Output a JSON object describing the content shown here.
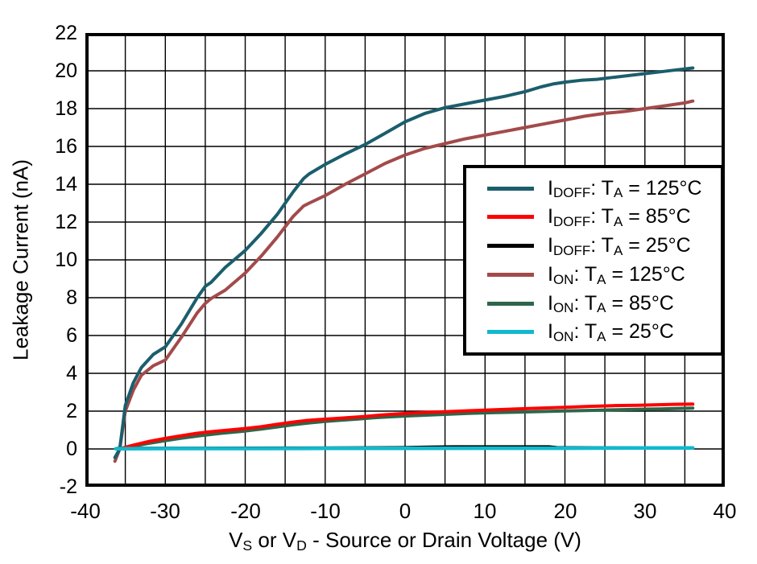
{
  "chart_data": {
    "type": "line",
    "title": "",
    "xlabel_text": "VS or VD - Source or Drain Voltage (V)",
    "xlabel_parts": [
      [
        "t",
        "V"
      ],
      [
        "s",
        "S"
      ],
      [
        "t",
        " or V"
      ],
      [
        "s",
        "D"
      ],
      [
        "t",
        " - Source or Drain Voltage (V)"
      ]
    ],
    "ylabel_text": "Leakage Current (nA)",
    "xlim": [
      -40,
      40
    ],
    "ylim": [
      -2,
      22
    ],
    "x_tick_labels": [
      "-40",
      "-30",
      "-20",
      "-10",
      "0",
      "10",
      "20",
      "30",
      "40"
    ],
    "x_tick_values": [
      -40,
      -30,
      -20,
      -10,
      0,
      10,
      20,
      30,
      40
    ],
    "x_grid_lines": [
      -35,
      -30,
      -25,
      -20,
      -15,
      -10,
      -5,
      0,
      5,
      10,
      15,
      20,
      25,
      30,
      35
    ],
    "y_tick_labels": [
      "-2",
      "0",
      "2",
      "4",
      "6",
      "8",
      "10",
      "12",
      "14",
      "16",
      "18",
      "20",
      "22"
    ],
    "y_tick_values": [
      -2,
      0,
      2,
      4,
      6,
      8,
      10,
      12,
      14,
      16,
      18,
      20,
      22
    ],
    "y_grid_lines": [
      0,
      2,
      4,
      6,
      8,
      10,
      12,
      14,
      16,
      18,
      20
    ],
    "grid": true,
    "frame_color": "#000000",
    "grid_color": "#000000",
    "legend_position": "inside-top-right",
    "series": [
      {
        "id": "idoff-125",
        "name": "IDOFF: TA = 125°C",
        "label_parts": [
          [
            "t",
            "I"
          ],
          [
            "s",
            "DOFF"
          ],
          [
            "t",
            ": T"
          ],
          [
            "s",
            "A"
          ],
          [
            "t",
            " = 125°C"
          ]
        ],
        "color": "#1B5E6C",
        "width": 4,
        "z": 5,
        "points": [
          [
            -36.3,
            -0.45
          ],
          [
            -35.7,
            0
          ],
          [
            -35,
            2.3
          ],
          [
            -34,
            3.5
          ],
          [
            -33,
            4.3
          ],
          [
            -31.5,
            5
          ],
          [
            -30,
            5.4
          ],
          [
            -28,
            6.6
          ],
          [
            -26,
            8
          ],
          [
            -25,
            8.6
          ],
          [
            -24.3,
            8.8
          ],
          [
            -22.5,
            9.6
          ],
          [
            -20,
            10.5
          ],
          [
            -18,
            11.4
          ],
          [
            -16,
            12.4
          ],
          [
            -14,
            13.6
          ],
          [
            -12.7,
            14.3
          ],
          [
            -12,
            14.55
          ],
          [
            -10,
            15.05
          ],
          [
            -7.5,
            15.6
          ],
          [
            -5,
            16.1
          ],
          [
            -2.5,
            16.7
          ],
          [
            0,
            17.3
          ],
          [
            2.5,
            17.75
          ],
          [
            5,
            18.05
          ],
          [
            7.5,
            18.25
          ],
          [
            10,
            18.45
          ],
          [
            12.5,
            18.65
          ],
          [
            15,
            18.9
          ],
          [
            17,
            19.15
          ],
          [
            18.5,
            19.3
          ],
          [
            20,
            19.4
          ],
          [
            22,
            19.5
          ],
          [
            24,
            19.55
          ],
          [
            26,
            19.65
          ],
          [
            28,
            19.75
          ],
          [
            30,
            19.85
          ],
          [
            32,
            19.95
          ],
          [
            34,
            20.05
          ],
          [
            36,
            20.15
          ]
        ]
      },
      {
        "id": "idoff-85",
        "name": "IDOFF: TA = 85°C",
        "label_parts": [
          [
            "t",
            "I"
          ],
          [
            "s",
            "DOFF"
          ],
          [
            "t",
            ": T"
          ],
          [
            "s",
            "A"
          ],
          [
            "t",
            " = 85°C"
          ]
        ],
        "color": "#FF0000",
        "width": 4,
        "z": 3,
        "points": [
          [
            -35.8,
            0
          ],
          [
            -34,
            0.2
          ],
          [
            -32,
            0.4
          ],
          [
            -30,
            0.56
          ],
          [
            -28,
            0.7
          ],
          [
            -26,
            0.83
          ],
          [
            -25,
            0.88
          ],
          [
            -23,
            0.96
          ],
          [
            -20,
            1.08
          ],
          [
            -18,
            1.18
          ],
          [
            -16,
            1.3
          ],
          [
            -14,
            1.42
          ],
          [
            -12.5,
            1.5
          ],
          [
            -11,
            1.55
          ],
          [
            -9,
            1.6
          ],
          [
            -7,
            1.66
          ],
          [
            -5,
            1.72
          ],
          [
            -3,
            1.79
          ],
          [
            -1,
            1.85
          ],
          [
            1,
            1.9
          ],
          [
            3,
            1.94
          ],
          [
            5,
            1.97
          ],
          [
            8,
            2.02
          ],
          [
            11,
            2.07
          ],
          [
            14,
            2.12
          ],
          [
            17,
            2.16
          ],
          [
            20,
            2.2
          ],
          [
            23,
            2.25
          ],
          [
            26,
            2.29
          ],
          [
            29,
            2.31
          ],
          [
            32,
            2.34
          ],
          [
            34,
            2.36
          ],
          [
            36,
            2.37
          ]
        ]
      },
      {
        "id": "idoff-25",
        "name": "IDOFF: TA = 25°C",
        "label_parts": [
          [
            "t",
            "I"
          ],
          [
            "s",
            "DOFF"
          ],
          [
            "t",
            ": T"
          ],
          [
            "s",
            "A"
          ],
          [
            "t",
            " = 25°C"
          ]
        ],
        "color": "#000000",
        "width": 3,
        "z": 1,
        "points": [
          [
            -36,
            0.05
          ],
          [
            -25,
            0.06
          ],
          [
            -15,
            0.07
          ],
          [
            -5,
            0.08
          ],
          [
            0,
            0.09
          ],
          [
            3,
            0.12
          ],
          [
            6,
            0.13
          ],
          [
            10,
            0.13
          ],
          [
            14,
            0.13
          ],
          [
            18,
            0.13
          ],
          [
            19,
            0.09
          ],
          [
            24,
            0.08
          ],
          [
            30,
            0.08
          ],
          [
            36,
            0.08
          ]
        ]
      },
      {
        "id": "ion-125",
        "name": "ION: TA = 125°C",
        "label_parts": [
          [
            "t",
            "I"
          ],
          [
            "s",
            "ON"
          ],
          [
            "t",
            ": T"
          ],
          [
            "s",
            "A"
          ],
          [
            "t",
            " = 125°C"
          ]
        ],
        "color": "#A34A4A",
        "width": 4,
        "z": 4,
        "points": [
          [
            -36.3,
            -0.65
          ],
          [
            -35.7,
            0
          ],
          [
            -35,
            2
          ],
          [
            -34,
            3.1
          ],
          [
            -33,
            3.9
          ],
          [
            -31.5,
            4.4
          ],
          [
            -30,
            4.7
          ],
          [
            -28,
            5.9
          ],
          [
            -26,
            7.2
          ],
          [
            -25,
            7.7
          ],
          [
            -24.3,
            7.95
          ],
          [
            -22.5,
            8.4
          ],
          [
            -20,
            9.3
          ],
          [
            -18,
            10.2
          ],
          [
            -16,
            11.2
          ],
          [
            -14,
            12.3
          ],
          [
            -12.7,
            12.85
          ],
          [
            -12,
            13
          ],
          [
            -10,
            13.4
          ],
          [
            -7.5,
            14
          ],
          [
            -5,
            14.55
          ],
          [
            -2.5,
            15.1
          ],
          [
            0,
            15.55
          ],
          [
            2.5,
            15.9
          ],
          [
            5,
            16.15
          ],
          [
            7.5,
            16.4
          ],
          [
            10,
            16.6
          ],
          [
            12.5,
            16.8
          ],
          [
            15,
            17
          ],
          [
            17.5,
            17.2
          ],
          [
            20,
            17.4
          ],
          [
            22.5,
            17.6
          ],
          [
            25,
            17.75
          ],
          [
            27.5,
            17.85
          ],
          [
            30,
            18
          ],
          [
            32.5,
            18.15
          ],
          [
            35,
            18.3
          ],
          [
            36,
            18.4
          ]
        ]
      },
      {
        "id": "ion-85",
        "name": "ION: TA = 85°C",
        "label_parts": [
          [
            "t",
            "I"
          ],
          [
            "s",
            "ON"
          ],
          [
            "t",
            ": T"
          ],
          [
            "s",
            "A"
          ],
          [
            "t",
            " = 85°C"
          ]
        ],
        "color": "#2C674A",
        "width": 4,
        "z": 2,
        "points": [
          [
            -35.8,
            0
          ],
          [
            -34,
            0.15
          ],
          [
            -32,
            0.3
          ],
          [
            -30,
            0.44
          ],
          [
            -28,
            0.57
          ],
          [
            -26,
            0.68
          ],
          [
            -25,
            0.73
          ],
          [
            -23,
            0.83
          ],
          [
            -20,
            0.95
          ],
          [
            -18,
            1.05
          ],
          [
            -16,
            1.16
          ],
          [
            -14,
            1.28
          ],
          [
            -12,
            1.38
          ],
          [
            -10,
            1.46
          ],
          [
            -8,
            1.52
          ],
          [
            -6,
            1.58
          ],
          [
            -4,
            1.65
          ],
          [
            -2,
            1.7
          ],
          [
            0,
            1.74
          ],
          [
            2,
            1.78
          ],
          [
            5,
            1.83
          ],
          [
            8,
            1.88
          ],
          [
            11,
            1.92
          ],
          [
            14,
            1.95
          ],
          [
            17,
            1.98
          ],
          [
            20,
            2.01
          ],
          [
            23,
            2.04
          ],
          [
            26,
            2.07
          ],
          [
            29,
            2.1
          ],
          [
            32,
            2.12
          ],
          [
            34,
            2.14
          ],
          [
            36,
            2.16
          ]
        ]
      },
      {
        "id": "ion-25",
        "name": "ION: TA = 25°C",
        "label_parts": [
          [
            "t",
            "I"
          ],
          [
            "s",
            "ON"
          ],
          [
            "t",
            ": T"
          ],
          [
            "s",
            "A"
          ],
          [
            "t",
            " = 25°C"
          ]
        ],
        "color": "#10B9CD",
        "width": 4.5,
        "z": 6,
        "points": [
          [
            -36.2,
            0.01
          ],
          [
            -30,
            0.02
          ],
          [
            -20,
            0.02
          ],
          [
            -10,
            0.03
          ],
          [
            0,
            0.03
          ],
          [
            10,
            0.04
          ],
          [
            20,
            0.04
          ],
          [
            30,
            0.05
          ],
          [
            36,
            0.05
          ]
        ]
      }
    ]
  }
}
